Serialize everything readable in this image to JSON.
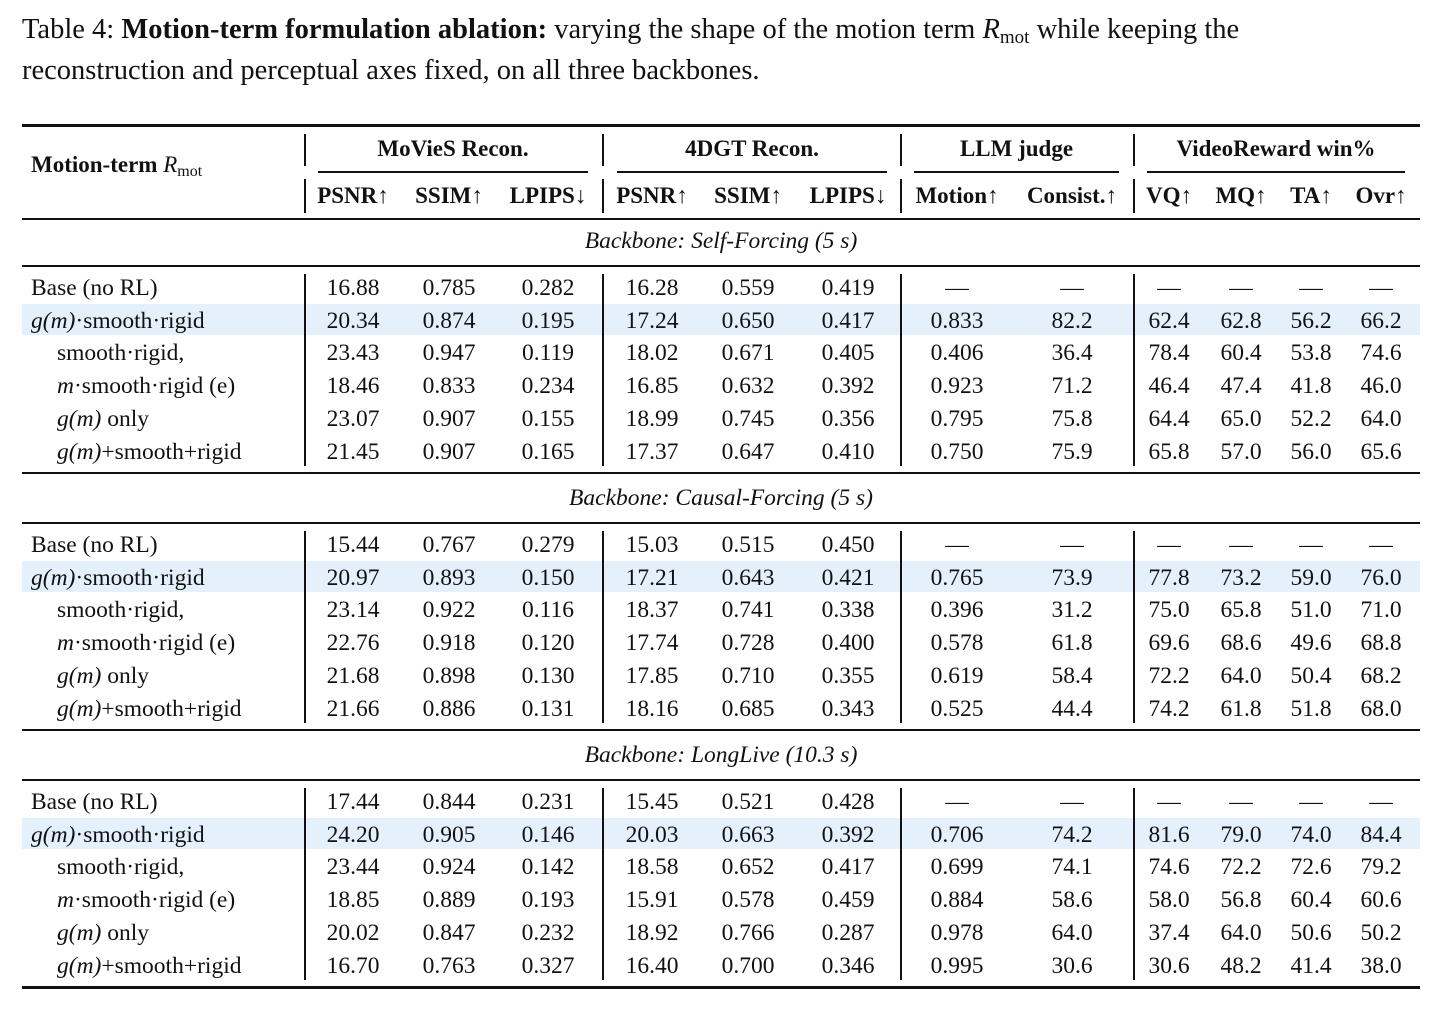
{
  "caption": {
    "label": "Table 4:",
    "bold": "Motion-term formulation ablation:",
    "text_a": "varying the shape of the motion term",
    "term_R": "R",
    "term_sub": "mot",
    "text_b": "while keeping the",
    "line2": "reconstruction and perceptual axes fixed, on all three backbones."
  },
  "header": {
    "row_label_main": "Motion-term",
    "row_label_R": "R",
    "row_label_sub": "mot",
    "groups": [
      "MoVieS Recon.",
      "4DGT Recon.",
      "LLM judge",
      "VideoReward win%"
    ],
    "columns": [
      "PSNR↑",
      "SSIM↑",
      "LPIPS↓",
      "PSNR↑",
      "SSIM↑",
      "LPIPS↓",
      "Motion↑",
      "Consist.↑",
      "VQ↑",
      "MQ↑",
      "TA↑",
      "Ovr↑"
    ]
  },
  "sections": [
    {
      "title": "Backbone: Self-Forcing (5 s)",
      "rows": [
        {
          "label": "Base (no RL)",
          "values": [
            "16.88",
            "0.785",
            "0.282",
            "16.28",
            "0.559",
            "0.419",
            "—",
            "—",
            "—",
            "—",
            "—",
            "—"
          ]
        },
        {
          "label": "g(m)·smooth·rigid",
          "values": [
            "20.34",
            "0.874",
            "0.195",
            "17.24",
            "0.650",
            "0.417",
            "0.833",
            "82.2",
            "62.4",
            "62.8",
            "56.2",
            "66.2"
          ]
        },
        {
          "label": "smooth·rigid,",
          "values": [
            "23.43",
            "0.947",
            "0.119",
            "18.02",
            "0.671",
            "0.405",
            "0.406",
            "36.4",
            "78.4",
            "60.4",
            "53.8",
            "74.6"
          ]
        },
        {
          "label": "m·smooth·rigid (e)",
          "values": [
            "18.46",
            "0.833",
            "0.234",
            "16.85",
            "0.632",
            "0.392",
            "0.923",
            "71.2",
            "46.4",
            "47.4",
            "41.8",
            "46.0"
          ]
        },
        {
          "label": "g(m) only",
          "values": [
            "23.07",
            "0.907",
            "0.155",
            "18.99",
            "0.745",
            "0.356",
            "0.795",
            "75.8",
            "64.4",
            "65.0",
            "52.2",
            "64.0"
          ]
        },
        {
          "label": "g(m)+smooth+rigid",
          "values": [
            "21.45",
            "0.907",
            "0.165",
            "17.37",
            "0.647",
            "0.410",
            "0.750",
            "75.9",
            "65.8",
            "57.0",
            "56.0",
            "65.6"
          ]
        }
      ]
    },
    {
      "title": "Backbone: Causal-Forcing (5 s)",
      "rows": [
        {
          "label": "Base (no RL)",
          "values": [
            "15.44",
            "0.767",
            "0.279",
            "15.03",
            "0.515",
            "0.450",
            "—",
            "—",
            "—",
            "—",
            "—",
            "—"
          ]
        },
        {
          "label": "g(m)·smooth·rigid",
          "values": [
            "20.97",
            "0.893",
            "0.150",
            "17.21",
            "0.643",
            "0.421",
            "0.765",
            "73.9",
            "77.8",
            "73.2",
            "59.0",
            "76.0"
          ]
        },
        {
          "label": "smooth·rigid,",
          "values": [
            "23.14",
            "0.922",
            "0.116",
            "18.37",
            "0.741",
            "0.338",
            "0.396",
            "31.2",
            "75.0",
            "65.8",
            "51.0",
            "71.0"
          ]
        },
        {
          "label": "m·smooth·rigid (e)",
          "values": [
            "22.76",
            "0.918",
            "0.120",
            "17.74",
            "0.728",
            "0.400",
            "0.578",
            "61.8",
            "69.6",
            "68.6",
            "49.6",
            "68.8"
          ]
        },
        {
          "label": "g(m) only",
          "values": [
            "21.68",
            "0.898",
            "0.130",
            "17.85",
            "0.710",
            "0.355",
            "0.619",
            "58.4",
            "72.2",
            "64.0",
            "50.4",
            "68.2"
          ]
        },
        {
          "label": "g(m)+smooth+rigid",
          "values": [
            "21.66",
            "0.886",
            "0.131",
            "18.16",
            "0.685",
            "0.343",
            "0.525",
            "44.4",
            "74.2",
            "61.8",
            "51.8",
            "68.0"
          ]
        }
      ]
    },
    {
      "title": "Backbone: LongLive (10.3 s)",
      "rows": [
        {
          "label": "Base (no RL)",
          "values": [
            "17.44",
            "0.844",
            "0.231",
            "15.45",
            "0.521",
            "0.428",
            "—",
            "—",
            "—",
            "—",
            "—",
            "—"
          ]
        },
        {
          "label": "g(m)·smooth·rigid",
          "values": [
            "24.20",
            "0.905",
            "0.146",
            "20.03",
            "0.663",
            "0.392",
            "0.706",
            "74.2",
            "81.6",
            "79.0",
            "74.0",
            "84.4"
          ]
        },
        {
          "label": "smooth·rigid,",
          "values": [
            "23.44",
            "0.924",
            "0.142",
            "18.58",
            "0.652",
            "0.417",
            "0.699",
            "74.1",
            "74.6",
            "72.2",
            "72.6",
            "79.2"
          ]
        },
        {
          "label": "m·smooth·rigid (e)",
          "values": [
            "18.85",
            "0.889",
            "0.193",
            "15.91",
            "0.578",
            "0.459",
            "0.884",
            "58.6",
            "58.0",
            "56.8",
            "60.4",
            "60.6"
          ]
        },
        {
          "label": "g(m) only",
          "values": [
            "20.02",
            "0.847",
            "0.232",
            "18.92",
            "0.766",
            "0.287",
            "0.978",
            "64.0",
            "37.4",
            "64.0",
            "50.6",
            "50.2"
          ]
        },
        {
          "label": "g(m)+smooth+rigid",
          "values": [
            "16.70",
            "0.763",
            "0.327",
            "16.40",
            "0.700",
            "0.346",
            "0.995",
            "30.6",
            "30.6",
            "48.2",
            "41.4",
            "38.0"
          ]
        }
      ]
    }
  ]
}
